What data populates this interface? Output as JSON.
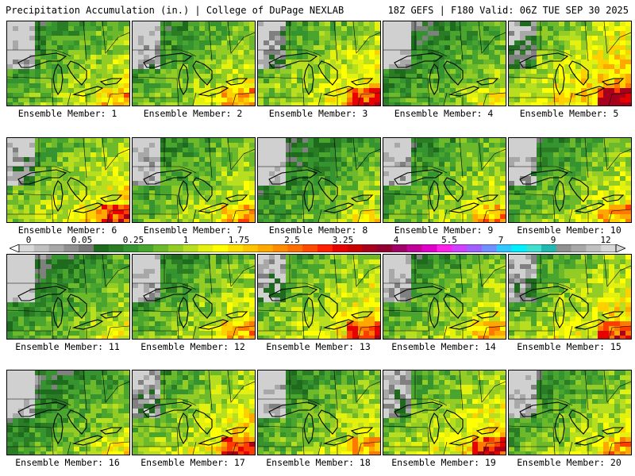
{
  "header": {
    "left": "Precipitation Accumulation (in.) | College of DuPage NEXLAB",
    "right": "18Z GEFS | F180 Valid: 06Z TUE SEP 30 2025"
  },
  "colorbar": {
    "tick_labels": [
      "0",
      "0.05",
      "0.25",
      "1",
      "1.75",
      "2.5",
      "3.25",
      "4",
      "5.5",
      "7",
      "9",
      "12"
    ],
    "colors": [
      "#d8d8d8",
      "#c0c0c0",
      "#a8a8a8",
      "#909090",
      "#787878",
      "#1e6b1e",
      "#2a7d25",
      "#359330",
      "#4aa52f",
      "#6cba2b",
      "#92cc25",
      "#b8de20",
      "#e4f00e",
      "#ffff00",
      "#ffe000",
      "#ffc400",
      "#ffa800",
      "#ff8c00",
      "#ff6e00",
      "#ff4800",
      "#ff2000",
      "#e60000",
      "#c80000",
      "#a8001c",
      "#900030",
      "#a00068",
      "#c00098",
      "#e000c8",
      "#ff20e8",
      "#d040ff",
      "#a060ff",
      "#7090ff",
      "#30c8ff",
      "#00f0ff",
      "#40e0d0",
      "#20b8b0",
      "#909090",
      "#a8a8a8",
      "#c0c0c0",
      "#d8d8d8"
    ]
  },
  "panels": [
    {
      "label": "Ensemble Member: 1",
      "wet": 2
    },
    {
      "label": "Ensemble Member: 2",
      "wet": 2
    },
    {
      "label": "Ensemble Member: 3",
      "wet": 3
    },
    {
      "label": "Ensemble Member: 4",
      "wet": 1
    },
    {
      "label": "Ensemble Member: 5",
      "wet": 4
    },
    {
      "label": "Ensemble Member: 6",
      "wet": 3
    },
    {
      "label": "Ensemble Member: 7",
      "wet": 2
    },
    {
      "label": "Ensemble Member: 8",
      "wet": 1
    },
    {
      "label": "Ensemble Member: 9",
      "wet": 2
    },
    {
      "label": "Ensemble Member: 10",
      "wet": 2
    },
    {
      "label": "Ensemble Member: 11",
      "wet": 1
    },
    {
      "label": "Ensemble Member: 12",
      "wet": 2
    },
    {
      "label": "Ensemble Member: 13",
      "wet": 3
    },
    {
      "label": "Ensemble Member: 14",
      "wet": 2
    },
    {
      "label": "Ensemble Member: 15",
      "wet": 3
    },
    {
      "label": "Ensemble Member: 16",
      "wet": 1
    },
    {
      "label": "Ensemble Member: 17",
      "wet": 3
    },
    {
      "label": "Ensemble Member: 18",
      "wet": 2
    },
    {
      "label": "Ensemble Member: 19",
      "wet": 3
    },
    {
      "label": "Ensemble Member: 20",
      "wet": 2
    }
  ]
}
